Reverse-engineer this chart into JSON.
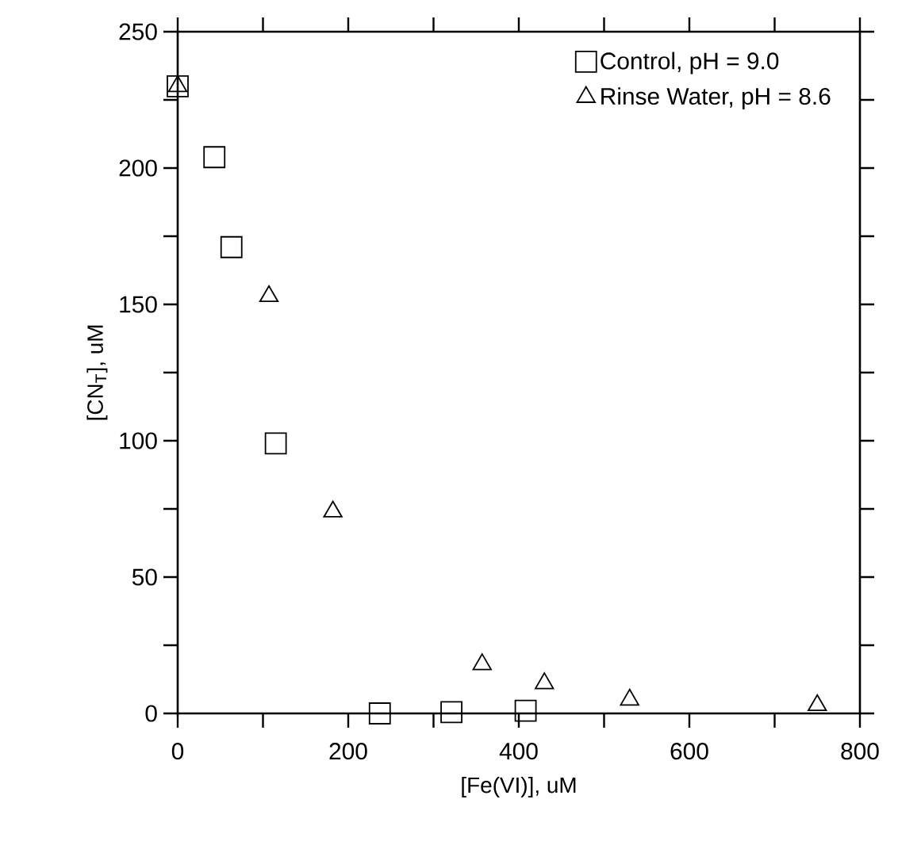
{
  "chart_data": {
    "type": "scatter",
    "xlabel": "[Fe(VI)], uM",
    "ylabel": "[CN$_{T}$], uM",
    "xlim": [
      0,
      800
    ],
    "ylim": [
      0,
      250
    ],
    "xticks": [
      0,
      {
        "value": 100,
        "label": null
      },
      200,
      {
        "value": 300,
        "label": null
      },
      400,
      {
        "value": 500,
        "label": null
      },
      600,
      {
        "value": 700,
        "label": null
      },
      800
    ],
    "yticks": [
      0,
      {
        "value": 25,
        "label": null
      },
      50,
      {
        "value": 75,
        "label": null
      },
      100,
      {
        "value": 125,
        "label": null
      },
      150,
      {
        "value": 175,
        "label": null
      },
      200,
      {
        "value": 225,
        "label": null
      },
      250
    ],
    "legend": "top right",
    "series": [
      {
        "name": "Control, pH = 9.0",
        "color": "#000000",
        "marker": "square",
        "x": [
          0,
          43,
          63,
          115,
          237,
          321,
          408
        ],
        "values": [
          230,
          204,
          171,
          99,
          0,
          0.5,
          1
        ]
      },
      {
        "name": "Rinse Water, pH = 8.6",
        "color": "#000000",
        "marker": "triangle",
        "x": [
          0,
          107,
          182,
          357,
          430,
          530,
          750
        ],
        "values": [
          230,
          153,
          74,
          18,
          11,
          5,
          3
        ]
      }
    ]
  }
}
